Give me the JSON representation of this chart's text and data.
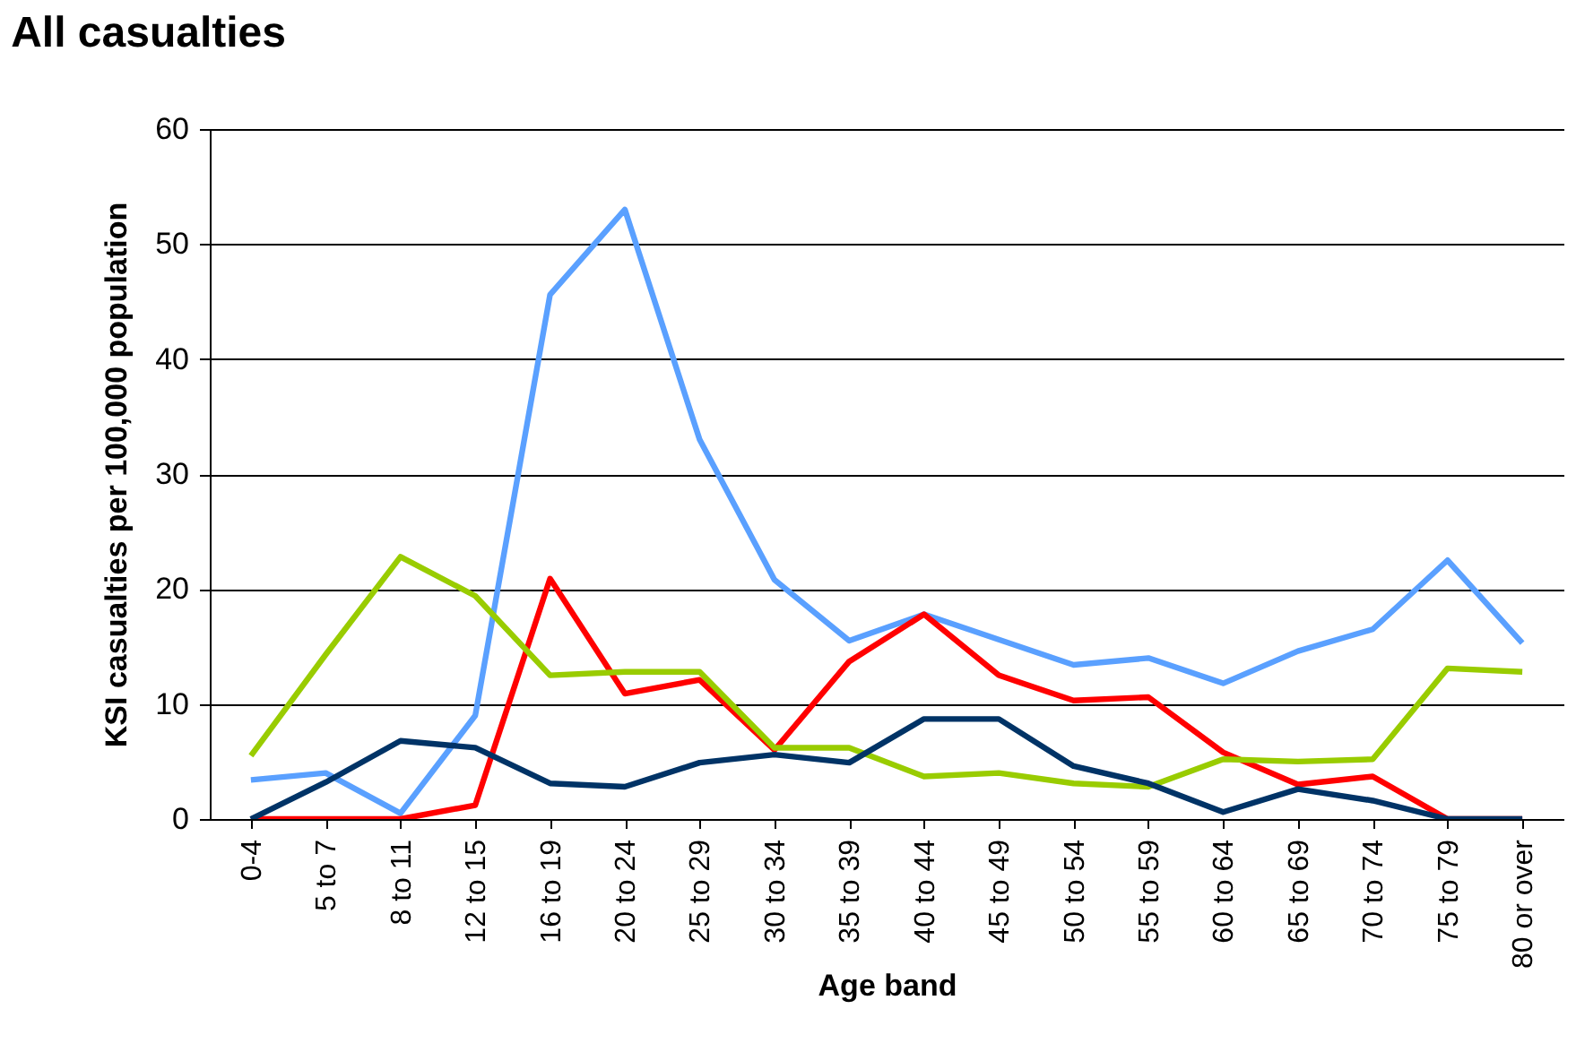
{
  "chart_data": {
    "type": "line",
    "title": "All casualties",
    "xlabel": "Age band",
    "ylabel": "KSI casualties per 100,000 population",
    "categories": [
      "0-4",
      "5 to 7",
      "8 to 11",
      "12 to 15",
      "16 to 19",
      "20 to 24",
      "25 to 29",
      "30 to 34",
      "35 to 39",
      "40 to 44",
      "45 to 49",
      "50 to 54",
      "55 to 59",
      "60 to 64",
      "65 to 69",
      "70 to 74",
      "75 to 79",
      "80 or over"
    ],
    "series": [
      {
        "color": "#5aa0ff",
        "values": [
          3.4,
          4,
          0.5,
          9,
          45.6,
          53,
          33,
          20.8,
          15.5,
          17.8,
          15.6,
          13.4,
          14,
          11.8,
          14.6,
          16.5,
          22.5,
          15.3
        ]
      },
      {
        "color": "#ff0000",
        "values": [
          0,
          0,
          0,
          1.2,
          20.9,
          10.9,
          12.1,
          6,
          13.7,
          17.8,
          12.5,
          10.3,
          10.6,
          5.8,
          3,
          3.7,
          0,
          0
        ]
      },
      {
        "color": "#99cc00",
        "values": [
          5.5,
          14.3,
          22.8,
          19.4,
          12.5,
          12.8,
          12.8,
          6.2,
          6.2,
          3.7,
          4,
          3.1,
          2.8,
          5.2,
          5,
          5.2,
          13.1,
          12.8
        ]
      },
      {
        "color": "#003366",
        "values": [
          0,
          3.2,
          6.8,
          6.2,
          3.1,
          2.8,
          4.9,
          5.6,
          4.9,
          8.7,
          8.7,
          4.6,
          3.1,
          0.6,
          2.6,
          1.6,
          0,
          0
        ]
      }
    ],
    "ylim": [
      0,
      60
    ],
    "yticks": [
      0,
      10,
      20,
      30,
      40,
      50,
      60
    ],
    "grid": "y",
    "legend": false,
    "marker": "none",
    "line_style": "solid"
  }
}
